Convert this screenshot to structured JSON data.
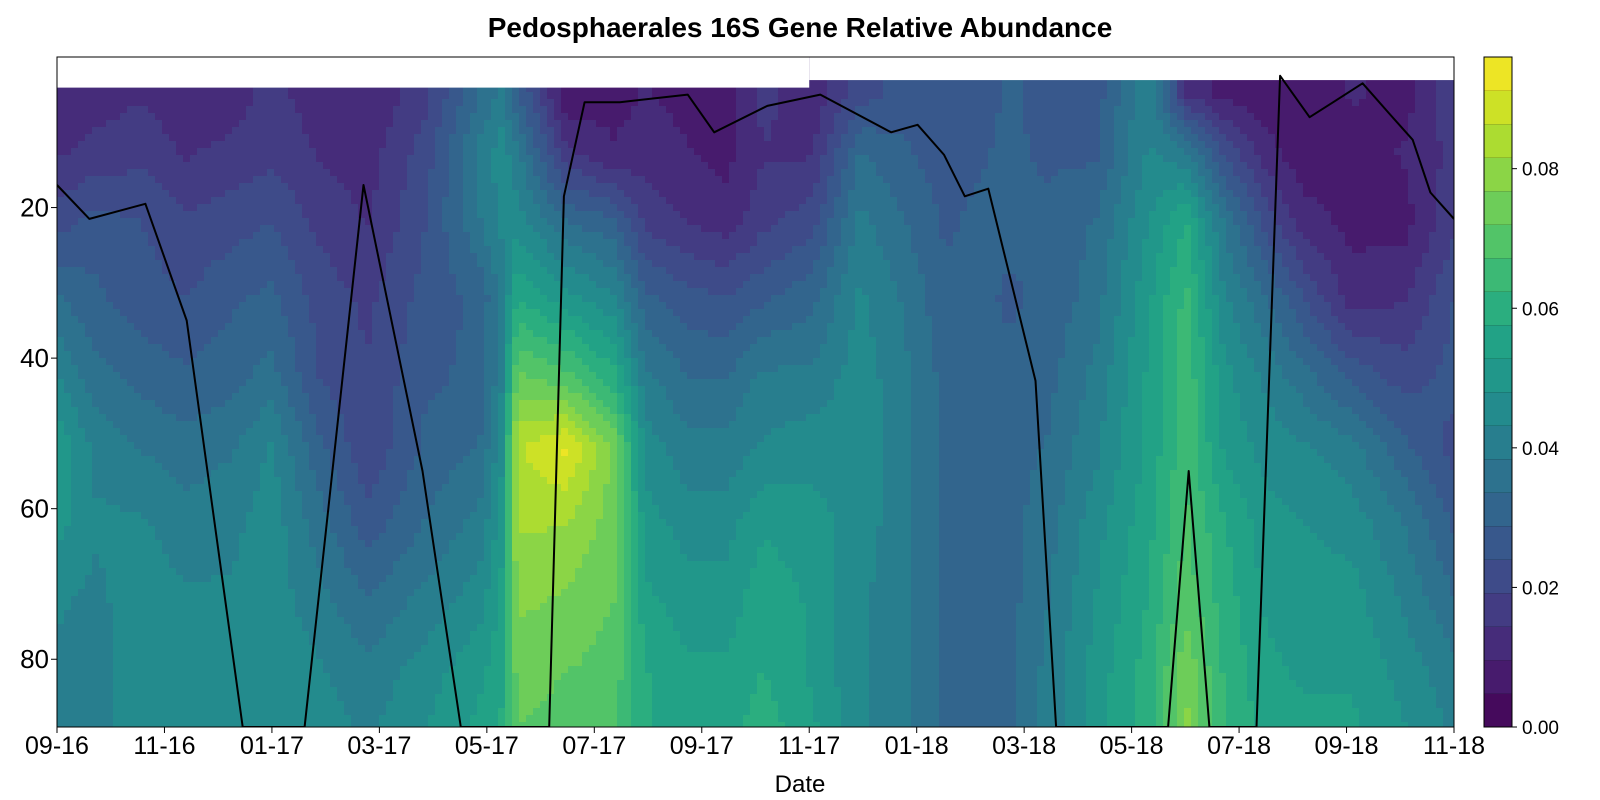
{
  "chart_data": {
    "type": "heatmap",
    "subtype": "filled-contour",
    "title": "Pedosphaerales 16S Gene Relative Abundance",
    "xlabel": "Date",
    "ylabel": "",
    "colormap": "viridis",
    "y_inverted": true,
    "ylim": [
      0,
      89
    ],
    "y_ticks": [
      "20",
      "40",
      "60",
      "80"
    ],
    "x_ticks": [
      "09-16",
      "11-16",
      "01-17",
      "03-17",
      "05-17",
      "07-17",
      "09-17",
      "11-17",
      "01-18",
      "03-18",
      "05-18",
      "07-18",
      "09-18",
      "11-18"
    ],
    "colorbar": {
      "range": [
        0,
        0.096
      ],
      "levels": 20,
      "ticks": [
        "0.00",
        "0.02",
        "0.04",
        "0.06",
        "0.08"
      ]
    },
    "grid": {
      "x_months": [
        0,
        0.7,
        1.6,
        2.4,
        3.3,
        4.0,
        4.9,
        5.8,
        6.9,
        7.9,
        8.3,
        8.6,
        9.5,
        10.4,
        11.0,
        11.8,
        12.5,
        13.2,
        14.1,
        15.0,
        15.8,
        16.6,
        17.2,
        17.8,
        18.5,
        19.4,
        20.4,
        21.1,
        21.8,
        22.6,
        23.3,
        24.2,
        25.2,
        26.1
      ],
      "x_dates": [
        "09-16",
        "10-16",
        "10-16",
        "11-16",
        "12-16",
        "01-17",
        "02-17",
        "02-17",
        "03-17",
        "04-17",
        "05-17",
        "05-17",
        "06-17",
        "07-17",
        "08-17",
        "08-17",
        "09-17",
        "10-17",
        "11-17",
        "12-17",
        "12-17",
        "01-18",
        "02-18",
        "03-18",
        "03-18",
        "04-18",
        "05-18",
        "06-18",
        "07-18",
        "07-18",
        "08-18",
        "09-18",
        "10-18",
        "11-18"
      ],
      "y_depths": [
        5,
        13,
        22,
        32,
        43,
        52,
        62,
        72,
        82,
        89
      ],
      "values": [
        [
          0.01,
          0.012,
          0.014,
          0.01,
          0.012,
          0.016,
          0.012,
          0.01,
          0.018,
          0.034,
          0.04,
          0.03,
          0.006,
          0.008,
          0.01,
          0.008,
          0.008,
          0.016,
          0.01,
          0.022,
          0.026,
          0.024,
          0.026,
          0.03,
          0.026,
          0.026,
          0.044,
          0.014,
          0.008,
          0.006,
          0.006,
          0.01,
          0.008,
          0.018
        ],
        [
          0.014,
          0.016,
          0.018,
          0.014,
          0.016,
          0.018,
          0.014,
          0.012,
          0.022,
          0.04,
          0.046,
          0.04,
          0.016,
          0.01,
          0.012,
          0.01,
          0.008,
          0.014,
          0.014,
          0.034,
          0.03,
          0.026,
          0.028,
          0.03,
          0.028,
          0.028,
          0.044,
          0.04,
          0.024,
          0.012,
          0.006,
          0.008,
          0.01,
          0.016
        ],
        [
          0.022,
          0.026,
          0.024,
          0.02,
          0.022,
          0.024,
          0.018,
          0.014,
          0.024,
          0.038,
          0.044,
          0.046,
          0.034,
          0.03,
          0.018,
          0.014,
          0.012,
          0.018,
          0.022,
          0.04,
          0.034,
          0.028,
          0.03,
          0.03,
          0.03,
          0.034,
          0.048,
          0.058,
          0.038,
          0.022,
          0.012,
          0.008,
          0.008,
          0.018
        ],
        [
          0.034,
          0.03,
          0.026,
          0.024,
          0.028,
          0.03,
          0.022,
          0.018,
          0.026,
          0.03,
          0.04,
          0.058,
          0.05,
          0.044,
          0.03,
          0.026,
          0.024,
          0.028,
          0.032,
          0.044,
          0.038,
          0.03,
          0.03,
          0.028,
          0.03,
          0.036,
          0.052,
          0.064,
          0.044,
          0.034,
          0.024,
          0.012,
          0.014,
          0.024
        ],
        [
          0.044,
          0.036,
          0.032,
          0.03,
          0.032,
          0.036,
          0.024,
          0.02,
          0.028,
          0.03,
          0.042,
          0.074,
          0.07,
          0.06,
          0.04,
          0.034,
          0.034,
          0.04,
          0.04,
          0.046,
          0.04,
          0.032,
          0.03,
          0.03,
          0.032,
          0.04,
          0.054,
          0.066,
          0.05,
          0.042,
          0.036,
          0.028,
          0.022,
          0.026
        ],
        [
          0.052,
          0.042,
          0.038,
          0.036,
          0.038,
          0.044,
          0.03,
          0.02,
          0.03,
          0.034,
          0.046,
          0.086,
          0.092,
          0.076,
          0.046,
          0.04,
          0.04,
          0.044,
          0.046,
          0.046,
          0.04,
          0.032,
          0.03,
          0.032,
          0.034,
          0.042,
          0.054,
          0.066,
          0.052,
          0.046,
          0.044,
          0.04,
          0.03,
          0.022
        ],
        [
          0.05,
          0.044,
          0.044,
          0.04,
          0.042,
          0.046,
          0.036,
          0.026,
          0.034,
          0.04,
          0.05,
          0.082,
          0.082,
          0.074,
          0.05,
          0.046,
          0.046,
          0.052,
          0.05,
          0.046,
          0.04,
          0.032,
          0.03,
          0.032,
          0.036,
          0.046,
          0.056,
          0.068,
          0.058,
          0.05,
          0.048,
          0.046,
          0.038,
          0.028
        ],
        [
          0.044,
          0.042,
          0.046,
          0.044,
          0.044,
          0.046,
          0.04,
          0.034,
          0.04,
          0.046,
          0.054,
          0.078,
          0.076,
          0.072,
          0.054,
          0.05,
          0.05,
          0.056,
          0.052,
          0.044,
          0.04,
          0.032,
          0.03,
          0.032,
          0.038,
          0.048,
          0.058,
          0.07,
          0.06,
          0.052,
          0.05,
          0.05,
          0.042,
          0.034
        ],
        [
          0.042,
          0.04,
          0.048,
          0.046,
          0.046,
          0.048,
          0.044,
          0.04,
          0.046,
          0.052,
          0.056,
          0.074,
          0.072,
          0.07,
          0.058,
          0.054,
          0.054,
          0.058,
          0.052,
          0.044,
          0.04,
          0.032,
          0.03,
          0.032,
          0.04,
          0.05,
          0.06,
          0.076,
          0.062,
          0.054,
          0.052,
          0.052,
          0.046,
          0.04
        ],
        [
          0.042,
          0.04,
          0.048,
          0.046,
          0.046,
          0.048,
          0.046,
          0.042,
          0.048,
          0.054,
          0.058,
          0.072,
          0.07,
          0.068,
          0.058,
          0.056,
          0.056,
          0.06,
          0.054,
          0.044,
          0.04,
          0.032,
          0.03,
          0.032,
          0.04,
          0.05,
          0.06,
          0.078,
          0.062,
          0.056,
          0.054,
          0.054,
          0.048,
          0.042
        ]
      ],
      "top_depth_steps": [
        {
          "from": "09-16",
          "to": "04-17",
          "depth": 4
        },
        {
          "from": "04-17",
          "to": "10-17",
          "depth": 3
        },
        {
          "from": "10-17",
          "to": "04-18",
          "depth": 2
        },
        {
          "from": "04-18",
          "to": "11-18",
          "depth": 1
        }
      ]
    },
    "line_series": {
      "name": "",
      "color": "#000000",
      "x_months": [
        0,
        1.1,
        3.0,
        4.4,
        6.3,
        8.4,
        10.4,
        12.4,
        13.7,
        15.2,
        16.7,
        17.2,
        17.9,
        19.1,
        21.4,
        22.3,
        24.1,
        25.9,
        28.3,
        29.2,
        30.1,
        30.8,
        31.6,
        33.2,
        33.9,
        35.5,
        36.3,
        37.1,
        37.7,
        38.4,
        39.1,
        39.9,
        40.7,
        41.5,
        42.5,
        43.3,
        44.3,
        45.2,
        46.0,
        46.6,
        47.4
      ],
      "y_depth": [
        17,
        21.5,
        19.5,
        35,
        89,
        89,
        17,
        55,
        89,
        89,
        89,
        18.5,
        6,
        6,
        5,
        10,
        6.5,
        5,
        10,
        9,
        13,
        18.5,
        17.5,
        43,
        89,
        89,
        89,
        89,
        89,
        55,
        89,
        89,
        89,
        2.5,
        8,
        6,
        3.5,
        7.5,
        11,
        18,
        21.5
      ]
    }
  }
}
